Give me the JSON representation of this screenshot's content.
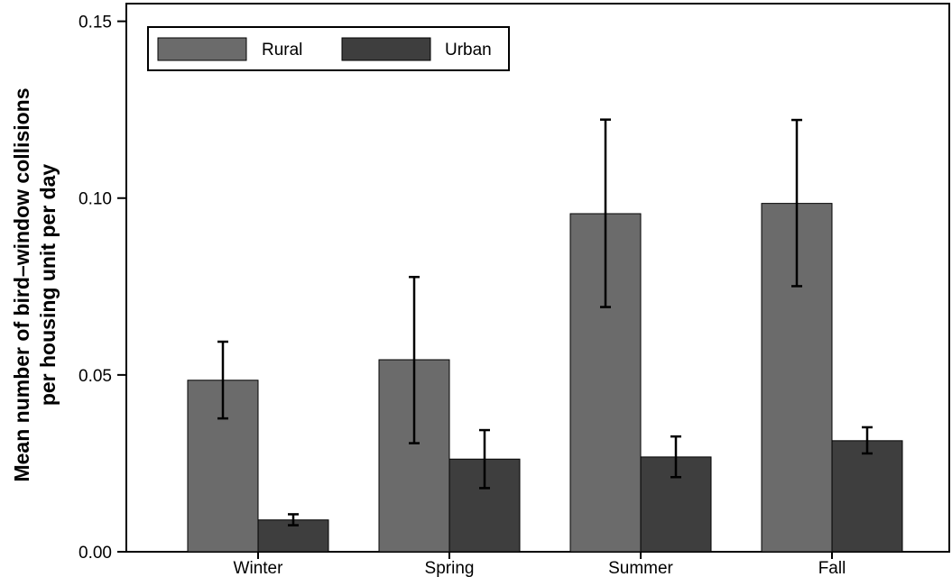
{
  "chart_data": {
    "type": "bar",
    "title": "",
    "xlabel": "",
    "ylabel_lines": [
      "Mean number of bird–window collisions",
      "per housing unit per day"
    ],
    "categories": [
      "Winter",
      "Spring",
      "Summer",
      "Fall"
    ],
    "ylim": [
      0,
      0.155
    ],
    "yticks": [
      0.0,
      0.05,
      0.1,
      0.15
    ],
    "ytick_labels": [
      "0.00",
      "0.05",
      "0.10",
      "0.15"
    ],
    "grid": false,
    "legend_position": "top-left",
    "series": [
      {
        "name": "Rural",
        "color": "#6b6b6b",
        "values": [
          0.0485,
          0.0543,
          0.0956,
          0.0985
        ],
        "error_low": [
          0.0377,
          0.0307,
          0.0692,
          0.0751
        ],
        "error_high": [
          0.0594,
          0.0777,
          0.1222,
          0.1221
        ]
      },
      {
        "name": "Urban",
        "color": "#3e3e3e",
        "values": [
          0.009,
          0.0262,
          0.0268,
          0.0314
        ],
        "error_low": [
          0.0075,
          0.018,
          0.0211,
          0.0278
        ],
        "error_high": [
          0.0106,
          0.0344,
          0.0326,
          0.0352
        ]
      }
    ]
  }
}
